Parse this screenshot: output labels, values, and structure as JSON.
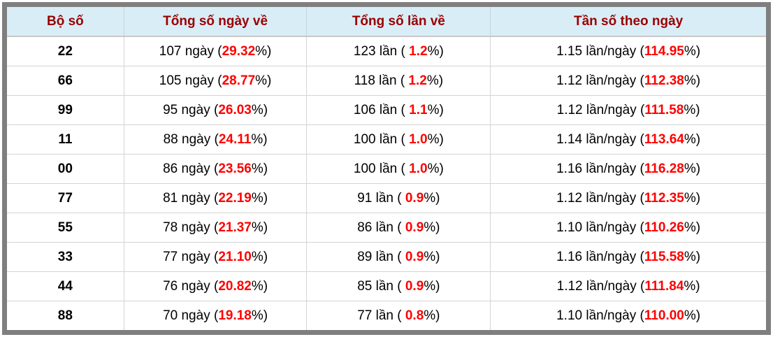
{
  "table": {
    "columns": [
      "Bộ số",
      "Tổng số ngày về",
      "Tổng số lần về",
      "Tần số theo ngày"
    ],
    "units": {
      "days": "ngày",
      "times": "lần",
      "per_day": "lần/ngày"
    },
    "rows": [
      {
        "bo_so": "22",
        "days": "107",
        "days_pct": "29.32",
        "times": "123",
        "times_pct": "1.2",
        "freq": "1.15",
        "freq_pct": "114.95"
      },
      {
        "bo_so": "66",
        "days": "105",
        "days_pct": "28.77",
        "times": "118",
        "times_pct": "1.2",
        "freq": "1.12",
        "freq_pct": "112.38"
      },
      {
        "bo_so": "99",
        "days": "95",
        "days_pct": "26.03",
        "times": "106",
        "times_pct": "1.1",
        "freq": "1.12",
        "freq_pct": "111.58"
      },
      {
        "bo_so": "11",
        "days": "88",
        "days_pct": "24.11",
        "times": "100",
        "times_pct": "1.0",
        "freq": "1.14",
        "freq_pct": "113.64"
      },
      {
        "bo_so": "00",
        "days": "86",
        "days_pct": "23.56",
        "times": "100",
        "times_pct": "1.0",
        "freq": "1.16",
        "freq_pct": "116.28"
      },
      {
        "bo_so": "77",
        "days": "81",
        "days_pct": "22.19",
        "times": "91",
        "times_pct": "0.9",
        "freq": "1.12",
        "freq_pct": "112.35"
      },
      {
        "bo_so": "55",
        "days": "78",
        "days_pct": "21.37",
        "times": "86",
        "times_pct": "0.9",
        "freq": "1.10",
        "freq_pct": "110.26"
      },
      {
        "bo_so": "33",
        "days": "77",
        "days_pct": "21.10",
        "times": "89",
        "times_pct": "0.9",
        "freq": "1.16",
        "freq_pct": "115.58"
      },
      {
        "bo_so": "44",
        "days": "76",
        "days_pct": "20.82",
        "times": "85",
        "times_pct": "0.9",
        "freq": "1.12",
        "freq_pct": "111.84"
      },
      {
        "bo_so": "88",
        "days": "70",
        "days_pct": "19.18",
        "times": "77",
        "times_pct": "0.8",
        "freq": "1.10",
        "freq_pct": "110.00"
      }
    ],
    "colors": {
      "header_bg": "#d9edf7",
      "header_text": "#990000",
      "highlight_pct": "#ff0000",
      "frame": "#7f7f7f",
      "gridline": "#d4d4d4"
    }
  }
}
